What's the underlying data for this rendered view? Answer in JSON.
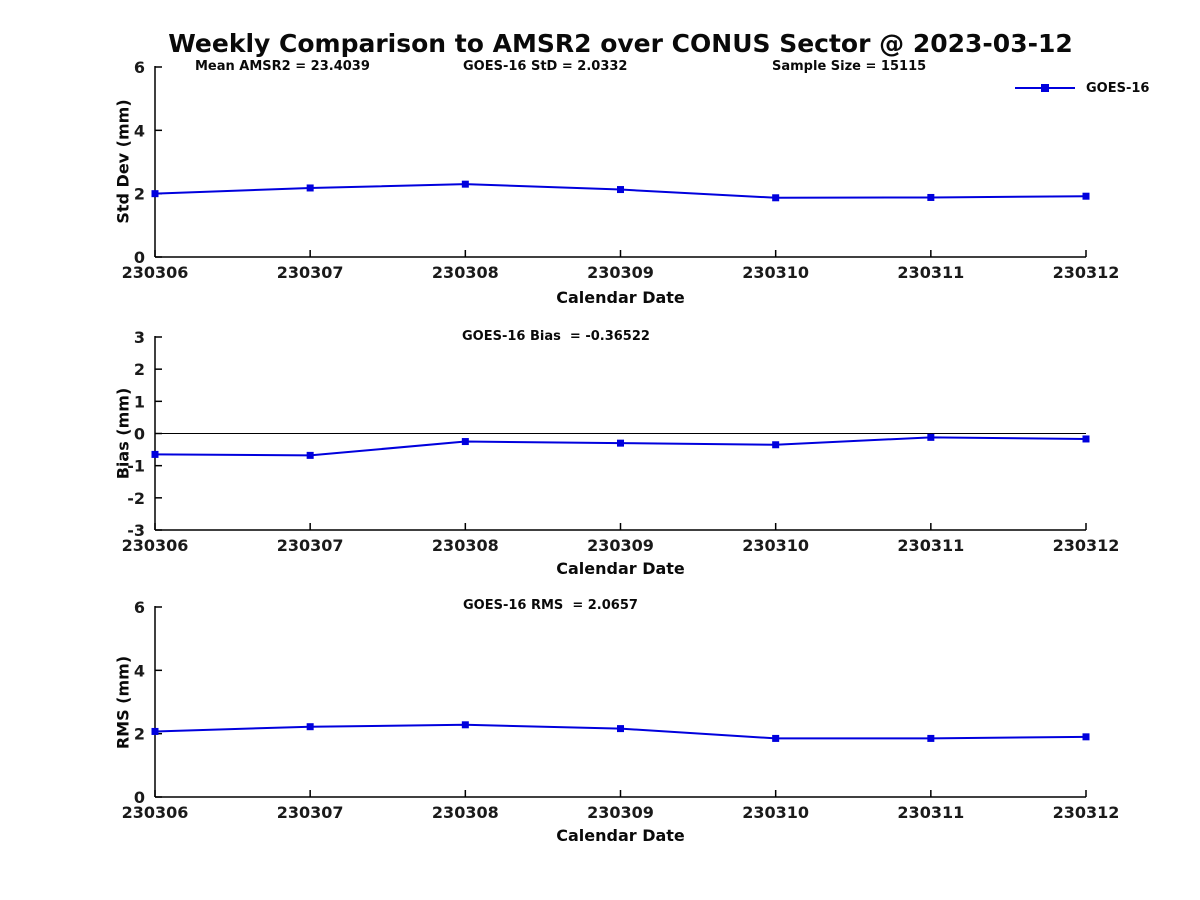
{
  "figure": {
    "title": "Weekly Comparison to AMSR2 over CONUS Sector @ 2023-03-12",
    "background": "#ffffff",
    "line_color": "#0000dd",
    "axis_color": "#000000",
    "legend": {
      "label": "GOES-16",
      "position": "top-right-outside"
    }
  },
  "chart_data": [
    {
      "id": "stddev",
      "type": "line",
      "x": [
        "230306",
        "230307",
        "230308",
        "230309",
        "230310",
        "230311",
        "230312"
      ],
      "series": [
        {
          "name": "GOES-16",
          "values": [
            2.0,
            2.18,
            2.3,
            2.13,
            1.87,
            1.88,
            1.92
          ]
        }
      ],
      "ylabel": "Std Dev (mm)",
      "xlabel": "Calendar Date",
      "ylim": [
        0,
        6
      ],
      "yticks": [
        0,
        2,
        4,
        6
      ],
      "grid": false,
      "zero_line": false,
      "annotations": [
        "Mean AMSR2 = 23.4039",
        "GOES-16 StD = 2.0332",
        "Sample Size = 15115"
      ]
    },
    {
      "id": "bias",
      "type": "line",
      "x": [
        "230306",
        "230307",
        "230308",
        "230309",
        "230310",
        "230311",
        "230312"
      ],
      "series": [
        {
          "name": "GOES-16",
          "values": [
            -0.65,
            -0.68,
            -0.25,
            -0.3,
            -0.35,
            -0.12,
            -0.17
          ]
        }
      ],
      "ylabel": "Bias (mm)",
      "xlabel": "Calendar Date",
      "ylim": [
        -3,
        3
      ],
      "yticks": [
        -3,
        -2,
        -1,
        0,
        1,
        2,
        3
      ],
      "grid": false,
      "zero_line": true,
      "annotations": [
        "GOES-16 Bias  = -0.36522"
      ]
    },
    {
      "id": "rms",
      "type": "line",
      "x": [
        "230306",
        "230307",
        "230308",
        "230309",
        "230310",
        "230311",
        "230312"
      ],
      "series": [
        {
          "name": "GOES-16",
          "values": [
            2.07,
            2.22,
            2.28,
            2.16,
            1.85,
            1.85,
            1.9
          ]
        }
      ],
      "ylabel": "RMS (mm)",
      "xlabel": "Calendar Date",
      "ylim": [
        0,
        6
      ],
      "yticks": [
        0,
        2,
        4,
        6
      ],
      "grid": false,
      "zero_line": false,
      "annotations": [
        "GOES-16 RMS  = 2.0657"
      ]
    }
  ]
}
